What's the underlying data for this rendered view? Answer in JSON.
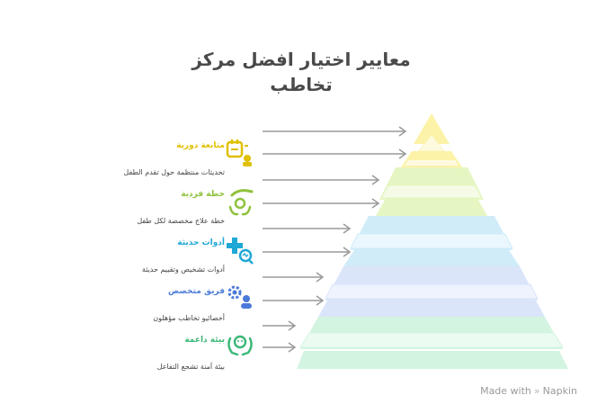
{
  "title": {
    "line1": "معايير اختيار افضل مركز",
    "line2": "تخاطب"
  },
  "levels": [
    {
      "label": "متابعة دورية",
      "description": "تحديثات منتظمة حول تقدم الطفل",
      "icon": "calendar-check-icon",
      "color": "#e0c000",
      "layer_color": "#fbf4b8"
    },
    {
      "label": "خطة فردية",
      "description": "خطة علاج مخصصة لكل طفل",
      "icon": "hand-child-icon",
      "color": "#8fc23b",
      "layer_color": "#e9f7c9"
    },
    {
      "label": "أدوات حديثة",
      "description": "أدوات تشخيص وتقييم حديثة",
      "icon": "medical-tools-icon",
      "color": "#1fa8d6",
      "layer_color": "#d2eef9"
    },
    {
      "label": "فريق متخصص",
      "description": "أخصائيو تخاطب مؤهلون",
      "icon": "team-gear-icon",
      "color": "#4b7ad8",
      "layer_color": "#dbe6fb"
    },
    {
      "label": "بيئة داعمة",
      "description": "بيئة آمنة تشجع التفاعل",
      "icon": "supportive-hands-icon",
      "color": "#3cb878",
      "layer_color": "#d4f5e2"
    }
  ],
  "branding": {
    "made_with": "Made with",
    "brand": "Napkin"
  }
}
